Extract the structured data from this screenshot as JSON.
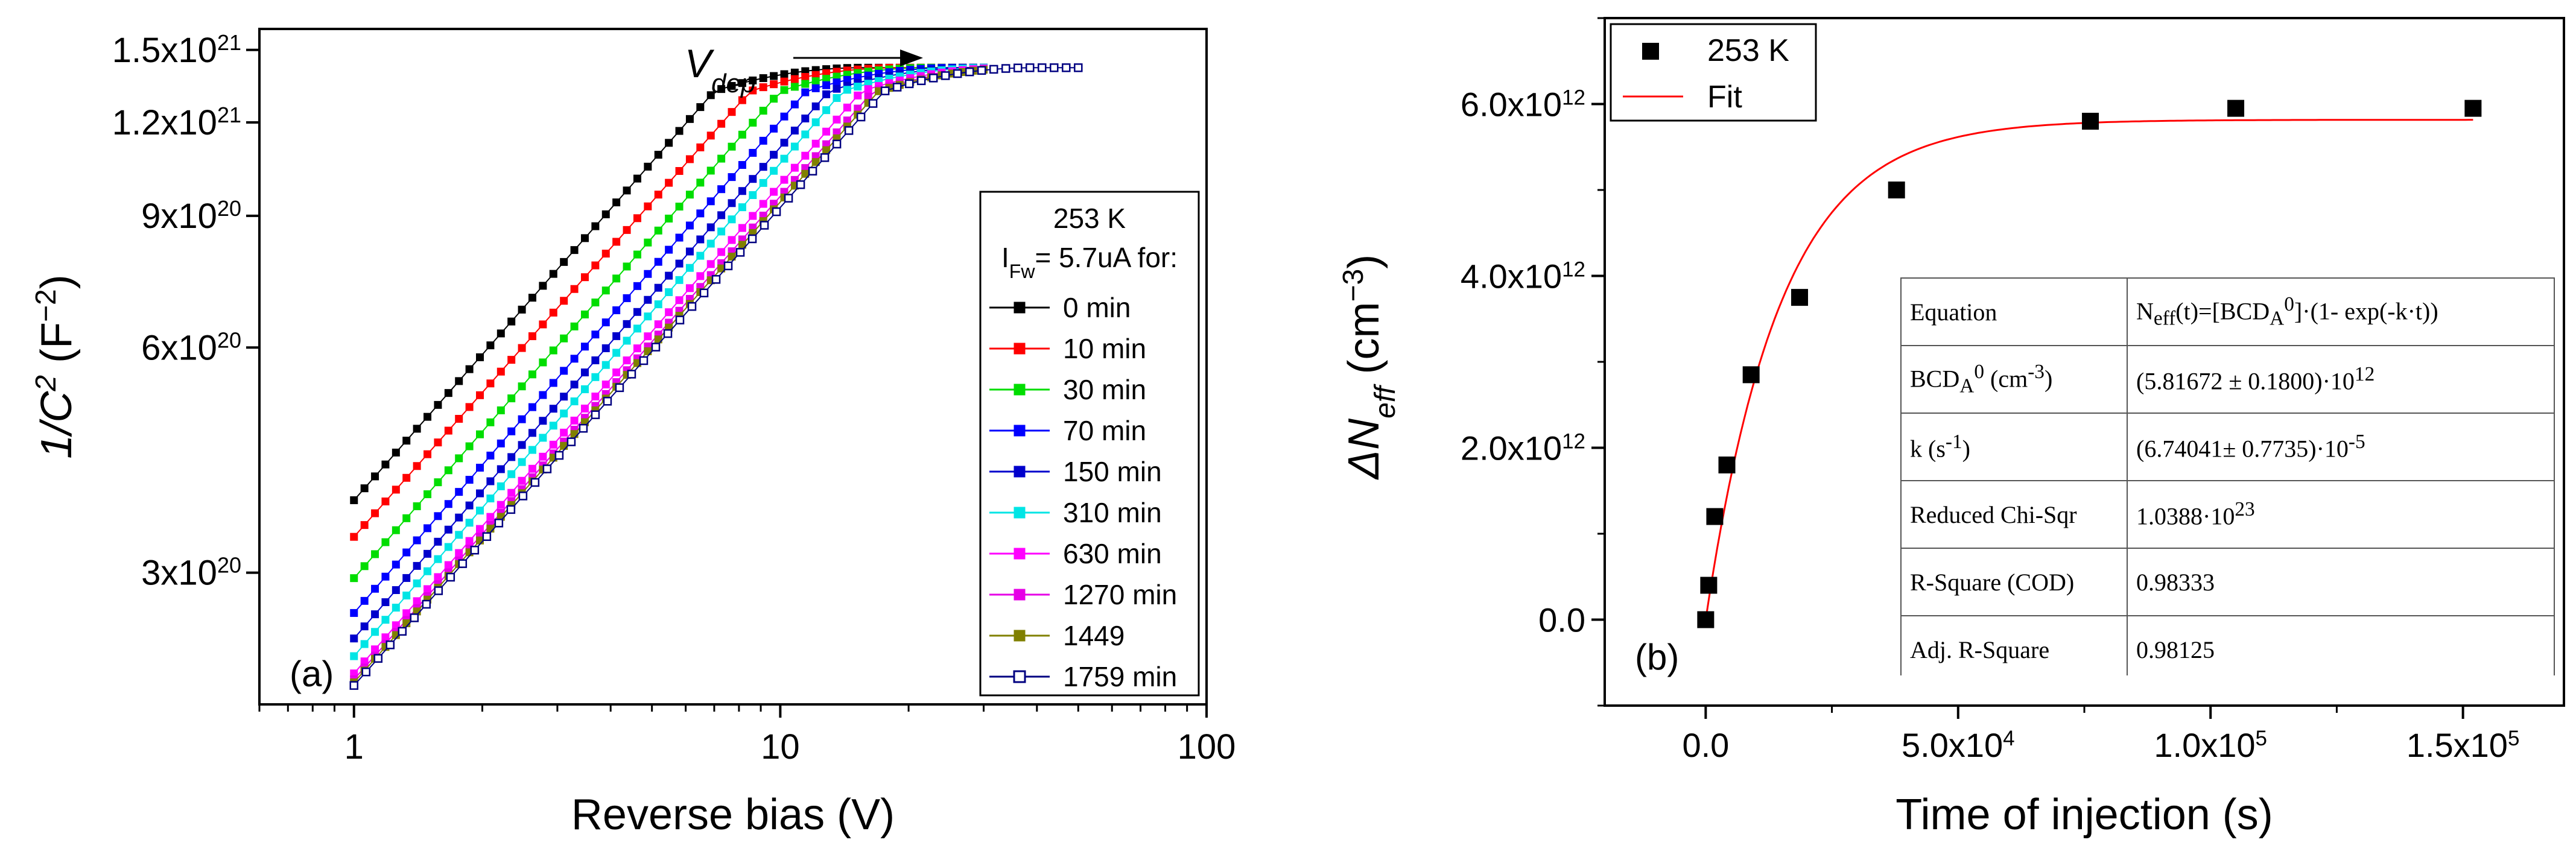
{
  "chart_data": [
    {
      "panel": "(a)",
      "type": "line",
      "xscale": "log",
      "yscale": "log",
      "xlabel": "Reverse bias (V)",
      "ylabel_main": "1/C",
      "ylabel_sup": "2",
      "ylabel_unit": " (F",
      "ylabel_unit_sup": "−2",
      "ylabel_close": ")",
      "xlim": [
        0.6,
        100
      ],
      "ylim": [
        2e+20,
        1.6e+21
      ],
      "xticks": [
        {
          "value": 1,
          "label": "1"
        },
        {
          "value": 10,
          "label": "10"
        },
        {
          "value": 100,
          "label": "100"
        }
      ],
      "yticks": [
        {
          "value": 3e+20,
          "mant": "3x10",
          "exp": "20"
        },
        {
          "value": 6e+20,
          "mant": "6x10",
          "exp": "20"
        },
        {
          "value": 9e+20,
          "mant": "9x10",
          "exp": "20"
        },
        {
          "value": 1.2e+21,
          "mant": "1.2x10",
          "exp": "21"
        },
        {
          "value": 1.5e+21,
          "mant": "1.5x10",
          "exp": "21"
        }
      ],
      "legend_title_line1": "253 K",
      "legend_title_line2_main": "I",
      "legend_title_line2_sub": "Fw",
      "legend_title_line2_rest": "= 5.7uA for:",
      "annotation_main": "V",
      "annotation_sub": "dep",
      "series": [
        {
          "name": "0 min",
          "color": "#000000",
          "y_at_1V": 3.75e+20,
          "v_knee": 7.0,
          "v_end": 30
        },
        {
          "name": "10 min",
          "color": "#ff0000",
          "y_at_1V": 3.35e+20,
          "v_knee": 8.5,
          "v_end": 30
        },
        {
          "name": "30 min",
          "color": "#00dd00",
          "y_at_1V": 2.95e+20,
          "v_knee": 10.0,
          "v_end": 30
        },
        {
          "name": "70 min",
          "color": "#0000ff",
          "y_at_1V": 2.65e+20,
          "v_knee": 11.5,
          "v_end": 30
        },
        {
          "name": "150 min",
          "color": "#0000cc",
          "y_at_1V": 2.45e+20,
          "v_knee": 13.0,
          "v_end": 30
        },
        {
          "name": "310 min",
          "color": "#00e5e5",
          "y_at_1V": 2.32e+20,
          "v_knee": 14.0,
          "v_end": 30
        },
        {
          "name": "630 min",
          "color": "#ff00ff",
          "y_at_1V": 2.2e+20,
          "v_knee": 15.5,
          "v_end": 30
        },
        {
          "name": "1270 min",
          "color": "#e600e6",
          "y_at_1V": 2.16e+20,
          "v_knee": 16.5,
          "v_end": 30
        },
        {
          "name": "1449",
          "color": "#808000",
          "y_at_1V": 2.14e+20,
          "v_knee": 17.0,
          "v_end": 30
        },
        {
          "name": "1759 min",
          "color": "#000080",
          "y_at_1V": 2.12e+20,
          "v_knee": 17.5,
          "v_end": 50
        }
      ]
    },
    {
      "panel": "(b)",
      "type": "scatter",
      "xlabel": "Time of injection (s)",
      "ylabel_delta": "ΔN",
      "ylabel_sub": "eff",
      "ylabel_unit": " (cm",
      "ylabel_unit_sup": "−3",
      "ylabel_close": ")",
      "xlim": [
        -20000,
        170000
      ],
      "ylim": [
        -1000000000000.0,
        7000000000000.0
      ],
      "xticks": [
        {
          "value": 0,
          "mant": "0.0",
          "exp": ""
        },
        {
          "value": 50000,
          "mant": "5.0x10",
          "exp": "4"
        },
        {
          "value": 100000,
          "mant": "1.0x10",
          "exp": "5"
        },
        {
          "value": 150000,
          "mant": "1.5x10",
          "exp": "5"
        }
      ],
      "yticks": [
        {
          "value": 0,
          "mant": "0.0",
          "exp": ""
        },
        {
          "value": 2000000000000.0,
          "mant": "2.0x10",
          "exp": "12"
        },
        {
          "value": 4000000000000.0,
          "mant": "4.0x10",
          "exp": "12"
        },
        {
          "value": 6000000000000.0,
          "mant": "6.0x10",
          "exp": "12"
        }
      ],
      "legend": [
        {
          "name": "253 K",
          "kind": "marker",
          "color": "#000000"
        },
        {
          "name": "Fit",
          "kind": "line",
          "color": "#ff0000"
        }
      ],
      "points": {
        "x": [
          0,
          600,
          1800,
          4200,
          9000,
          18600,
          37800,
          76200,
          105000,
          152000
        ],
        "y": [
          0.0,
          400000000000.0,
          1200000000000.0,
          1800000000000.0,
          2850000000000.0,
          3750000000000.0,
          5000000000000.0,
          5800000000000.0,
          5950000000000.0,
          5950000000000.0
        ]
      },
      "fit": {
        "A": 5816720000000.0,
        "k": 6.74041e-05,
        "x_start": 0,
        "x_end": 152000
      },
      "table": [
        {
          "label": "Equation",
          "value_html": "N<sub>eff</sub>(t)=[BCD<sub>A</sub><sup>0</sup>]·(1- exp(-k·t))"
        },
        {
          "label_html": "BCD<sub>A</sub><sup>0</sup> (cm<sup>-3</sup>)",
          "value_html": "(5.81672 ± 0.1800)·10<sup>12</sup>"
        },
        {
          "label_html": "k (s<sup>-1</sup>)",
          "value_html": "(6.74041± 0.7735)·10<sup>-5</sup>"
        },
        {
          "label": "Reduced Chi-Sqr",
          "value_html": "1.0388·10<sup>23</sup>"
        },
        {
          "label": "R-Square (COD)",
          "value": "0.98333"
        },
        {
          "label": "Adj. R-Square",
          "value": "0.98125"
        }
      ]
    }
  ]
}
